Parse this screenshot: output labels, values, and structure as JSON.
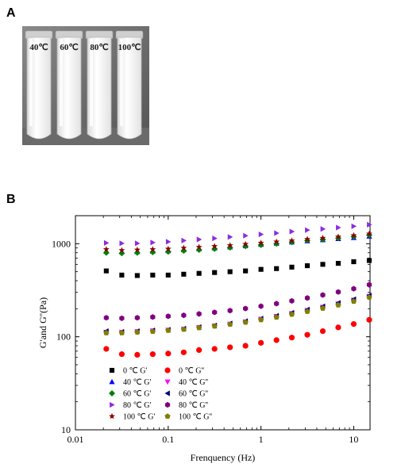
{
  "panel_a": {
    "label": "A",
    "tube_labels": [
      "40℃",
      "60℃",
      "80℃",
      "100℃"
    ]
  },
  "panel_b": {
    "label": "B"
  },
  "chart_data": {
    "type": "scatter",
    "xlabel": "Frenquency (Hz)",
    "ylabel": "G'and G''(Pa)",
    "x_scale": "log",
    "y_scale": "log",
    "xlim": [
      0.01,
      15
    ],
    "ylim": [
      10,
      2000
    ],
    "x_ticks": [
      0.01,
      0.1,
      1,
      10
    ],
    "x_tick_labels": [
      "0.01",
      "0.1",
      "1",
      "10"
    ],
    "y_ticks": [
      10,
      100,
      1000
    ],
    "y_tick_labels": [
      "10",
      "100",
      "1000"
    ],
    "grid": false,
    "legend_position": "bottom-left",
    "x": [
      0.0215,
      0.0316,
      0.0464,
      0.0681,
      0.1,
      0.147,
      0.215,
      0.316,
      0.464,
      0.681,
      1.0,
      1.47,
      2.15,
      3.16,
      4.64,
      6.81,
      10.0,
      14.7
    ],
    "series": [
      {
        "name": "0 ℃ G'",
        "marker": "square",
        "color": "#000000",
        "values": [
          510,
          460,
          455,
          460,
          460,
          470,
          480,
          490,
          500,
          510,
          530,
          540,
          560,
          580,
          600,
          615,
          640,
          660
        ]
      },
      {
        "name": "0 ℃ G''",
        "marker": "circle",
        "color": "#ff0000",
        "values": [
          74,
          65,
          64,
          65,
          66,
          68,
          72,
          74,
          77,
          80,
          86,
          92,
          98,
          105,
          115,
          126,
          137,
          152
        ]
      },
      {
        "name": "40 ℃ G'",
        "marker": "triangle-up",
        "color": "#0000ff",
        "values": [
          830,
          820,
          820,
          830,
          840,
          860,
          880,
          900,
          920,
          950,
          980,
          1010,
          1040,
          1070,
          1100,
          1130,
          1160,
          1200
        ]
      },
      {
        "name": "40 ℃ G''",
        "marker": "triangle-down",
        "color": "#ff00ff",
        "values": [
          112,
          112,
          114,
          116,
          118,
          121,
          126,
          131,
          137,
          145,
          155,
          166,
          178,
          192,
          208,
          226,
          248,
          272
        ]
      },
      {
        "name": "60 ℃ G'",
        "marker": "diamond",
        "color": "#008000",
        "values": [
          800,
          790,
          800,
          810,
          820,
          840,
          860,
          880,
          910,
          940,
          970,
          1000,
          1040,
          1080,
          1110,
          1150,
          1190,
          1240
        ]
      },
      {
        "name": "60 ℃ G''",
        "marker": "triangle-left",
        "color": "#000080",
        "values": [
          115,
          113,
          115,
          117,
          119,
          122,
          127,
          132,
          139,
          147,
          157,
          168,
          181,
          196,
          212,
          231,
          253,
          278
        ]
      },
      {
        "name": "80 ℃ G'",
        "marker": "triangle-right",
        "color": "#8a2be2",
        "values": [
          1020,
          1010,
          1010,
          1030,
          1050,
          1080,
          1110,
          1140,
          1180,
          1220,
          1260,
          1300,
          1350,
          1400,
          1440,
          1490,
          1540,
          1600
        ]
      },
      {
        "name": "80 ℃ G''",
        "marker": "hexagon",
        "color": "#800080",
        "values": [
          160,
          158,
          160,
          163,
          166,
          170,
          176,
          183,
          191,
          201,
          213,
          227,
          243,
          261,
          281,
          303,
          328,
          362
        ]
      },
      {
        "name": "100 ℃ G'",
        "marker": "star",
        "color": "#8b0000",
        "values": [
          870,
          850,
          860,
          870,
          880,
          900,
          920,
          940,
          960,
          990,
          1020,
          1050,
          1080,
          1120,
          1150,
          1190,
          1230,
          1280
        ]
      },
      {
        "name": "100 ℃ G''",
        "marker": "pentagon",
        "color": "#808000",
        "values": [
          110,
          110,
          112,
          114,
          117,
          120,
          125,
          130,
          136,
          143,
          152,
          162,
          174,
          187,
          202,
          219,
          240,
          265
        ]
      }
    ]
  }
}
